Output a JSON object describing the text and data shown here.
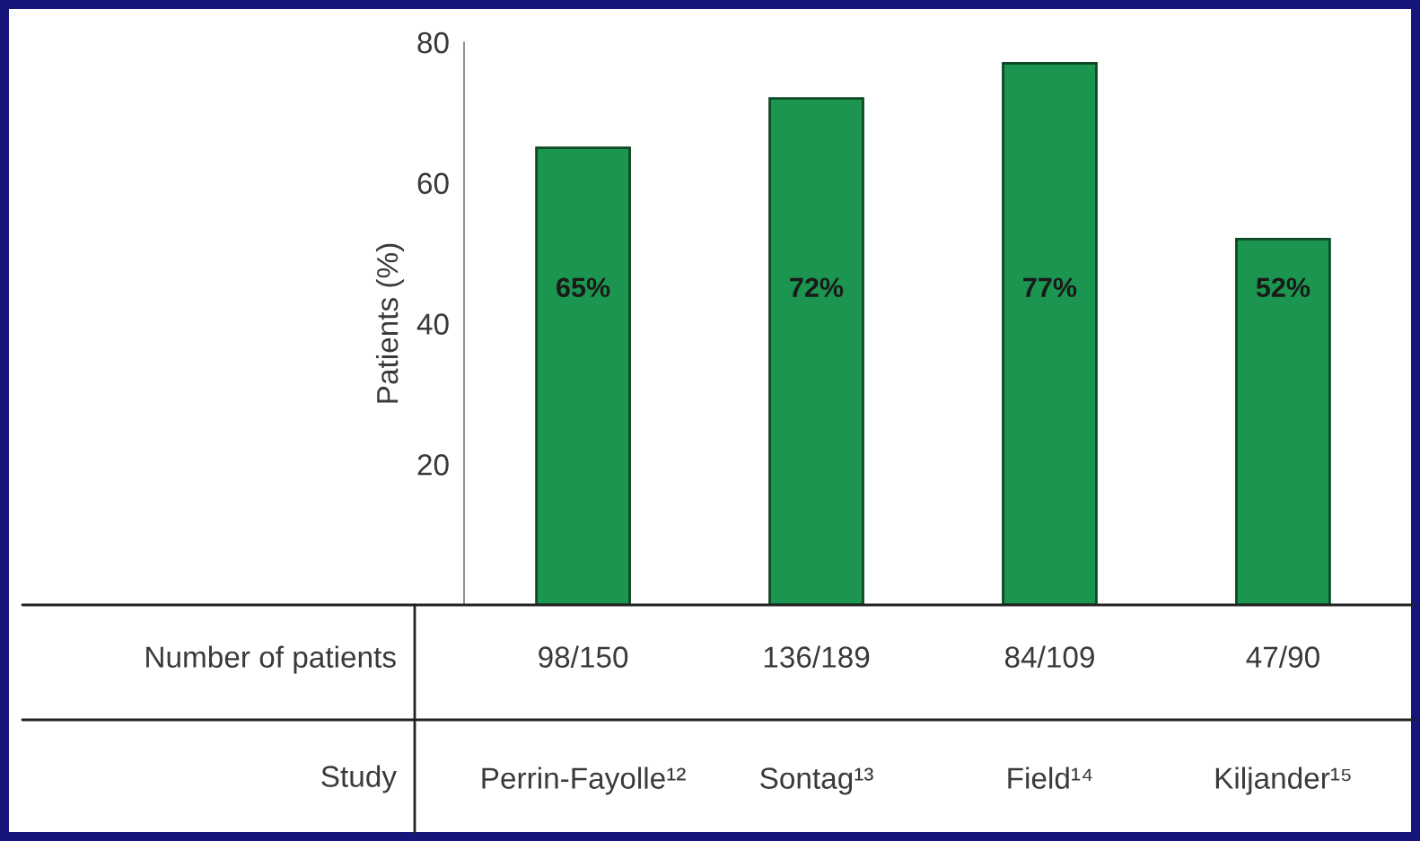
{
  "chart_data": {
    "type": "bar",
    "ylabel": "Patients (%)",
    "xlabel": "Study",
    "categories": [
      "Perrin-Fayolle¹²",
      "Sontag¹³",
      "Field¹⁴",
      "Kiljander¹⁵"
    ],
    "values": [
      65,
      72,
      77,
      52
    ],
    "color": "#1b9550",
    "value_labels": [
      "65%",
      "72%",
      "77%",
      "52%"
    ],
    "ylim": [
      0,
      80
    ],
    "yticks": [
      20,
      40,
      60,
      80
    ],
    "grid": false,
    "legend": false,
    "annotations": [
      "Number of patients",
      "98/150",
      "136/189",
      "84/109",
      "47/90"
    ]
  }
}
